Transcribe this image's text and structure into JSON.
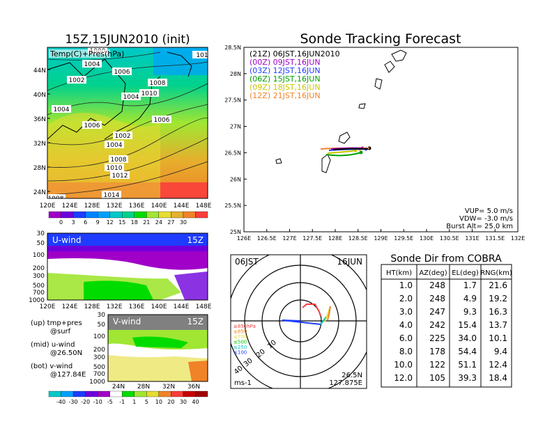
{
  "left": {
    "title": "15Z,15JUN2010 (init)",
    "map_label": "Temp(C)+Pres(hPa)",
    "lat_ticks": [
      "44N",
      "40N",
      "36N",
      "32N",
      "28N",
      "24N"
    ],
    "lon_ticks": [
      "120E",
      "124E",
      "128E",
      "132E",
      "136E",
      "140E",
      "144E",
      "148E"
    ],
    "isobar_labels": [
      {
        "text": "1004"
      },
      {
        "text": "1006"
      },
      {
        "text": "1002"
      },
      {
        "text": "1008"
      },
      {
        "text": "1010"
      },
      {
        "text": "1004"
      },
      {
        "text": "1006"
      },
      {
        "text": "1004"
      },
      {
        "text": "1006"
      },
      {
        "text": "1002"
      },
      {
        "text": "1004"
      },
      {
        "text": "1008"
      },
      {
        "text": "1010"
      },
      {
        "text": "1012"
      },
      {
        "text": "1014"
      },
      {
        "text": "1000"
      },
      {
        "text": "101"
      },
      {
        "text": "1008"
      }
    ],
    "temp_colorbar": {
      "labels": [
        "0",
        "3",
        "6",
        "9",
        "12",
        "15",
        "18",
        "21",
        "24",
        "27",
        "30"
      ],
      "colors": [
        "#a000c8",
        "#6e00dc",
        "#1e3cff",
        "#0082ff",
        "#00a0ff",
        "#00c8c8",
        "#00d28c",
        "#00dc00",
        "#a0e632",
        "#e6dc32",
        "#e6af2d",
        "#f08228",
        "#fa3c3c"
      ]
    },
    "u_wind": {
      "label": "U-wind",
      "time": "15Z",
      "p_ticks": [
        "30",
        "50",
        "100",
        "200",
        "300",
        "500",
        "700",
        "1000"
      ],
      "lon_ticks": [
        "120E",
        "124E",
        "128E",
        "132E",
        "136E",
        "140E",
        "144E",
        "148E"
      ]
    },
    "v_wind": {
      "label": "V-wind",
      "time": "15Z",
      "p_ticks": [
        "30",
        "50",
        "100",
        "200",
        "300",
        "500",
        "700",
        "1000"
      ],
      "lat_ticks": [
        "24N",
        "28N",
        "32N",
        "36N"
      ]
    },
    "notes": [
      {
        "a": "(up) tmp+pres",
        "b": "@surf"
      },
      {
        "a": "(mid) u-wind",
        "b": "@26.50N"
      },
      {
        "a": "(bot) v-wind",
        "b": "@127.84E"
      }
    ],
    "wind_colorbar": {
      "labels": [
        "-40",
        "-30",
        "-20",
        "-10",
        "-5",
        "-1",
        "1",
        "5",
        "10",
        "20",
        "30",
        "40"
      ],
      "colors": [
        "#00c8c8",
        "#00a0ff",
        "#1e3cff",
        "#6e00dc",
        "#a000c8",
        "#ffffff",
        "#00dc00",
        "#a0e632",
        "#e6dc32",
        "#f08228",
        "#fa3c3c",
        "#c80000",
        "#a00000"
      ]
    }
  },
  "forecast": {
    "title": "Sonde Tracking Forecast",
    "legend": [
      {
        "text": "(21Z)  06JST,16JUN2010",
        "color": "#000000"
      },
      {
        "text": "(00Z)  09JST,16JUN",
        "color": "#a000c8"
      },
      {
        "text": "(03Z)  12JST,16JUN",
        "color": "#1e3cff"
      },
      {
        "text": "(06Z)  15JST,16JUN",
        "color": "#00a000"
      },
      {
        "text": "(09Z)  18JST,16JUN",
        "color": "#c8c800"
      },
      {
        "text": "(12Z)  21JST,16JUN",
        "color": "#f08228"
      }
    ],
    "lat_ticks": [
      "28.5N",
      "28N",
      "27.5N",
      "27N",
      "26.5N",
      "26N",
      "25.5N",
      "25N"
    ],
    "lon_ticks": [
      "126E",
      "126.5E",
      "127E",
      "127.5E",
      "128E",
      "128.5E",
      "129E",
      "129.5E",
      "130E",
      "130.5E",
      "131E",
      "131.5E",
      "132E"
    ],
    "params": [
      "VUP=  5.0  m/s",
      "VDW=  -3.0  m/s",
      "Burst Alt=  25.0  km"
    ]
  },
  "chart_data": {
    "type": "table",
    "title": "Sonde Dir from COBRA",
    "columns": [
      "HT(km)",
      "AZ(deg)",
      "EL(deg)",
      "RNG(km)"
    ],
    "rows": [
      [
        "1.0",
        "248",
        "1.7",
        "21.6"
      ],
      [
        "2.0",
        "248",
        "4.9",
        "19.2"
      ],
      [
        "3.0",
        "247",
        "9.3",
        "16.3"
      ],
      [
        "4.0",
        "242",
        "15.4",
        "13.7"
      ],
      [
        "6.0",
        "225",
        "34.0",
        "10.1"
      ],
      [
        "8.0",
        "178",
        "54.4",
        "9.4"
      ],
      [
        "10.0",
        "122",
        "51.1",
        "12.4"
      ],
      [
        "12.0",
        "105",
        "39.3",
        "18.4"
      ]
    ]
  },
  "polar": {
    "time_left": "06JST",
    "time_right": "16JUN",
    "ring_labels": [
      "10",
      "20",
      "30",
      "40"
    ],
    "height_legend": [
      {
        "text": "≥850hPa",
        "color": "#fa3c3c"
      },
      {
        "text": "≤850",
        "color": "#f08228"
      },
      {
        "text": "≤700",
        "color": "#e6dc32"
      },
      {
        "text": "≤500",
        "color": "#00c800"
      },
      {
        "text": "≤250",
        "color": "#00c8c8"
      },
      {
        "text": "≤100",
        "color": "#1e3cff"
      }
    ],
    "unit": "ms-1",
    "loc_lat": "26.5N",
    "loc_lon": "127.875E"
  }
}
